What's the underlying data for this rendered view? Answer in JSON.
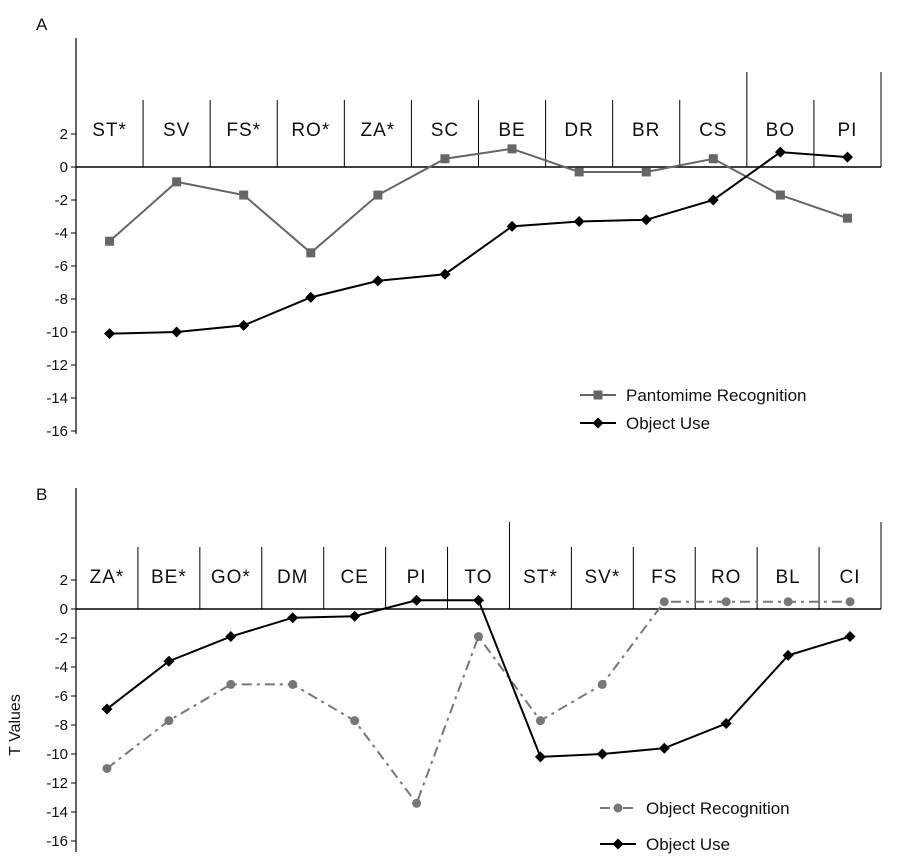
{
  "chart_data": [
    {
      "panel": "A",
      "type": "line",
      "categories": [
        "ST*",
        "SV",
        "FS*",
        "RO*",
        "ZA*",
        "SC",
        "BE",
        "DR",
        "BR",
        "CS",
        "BO",
        "PI"
      ],
      "yticks": [
        2,
        0,
        -2,
        -4,
        -6,
        -8,
        -10,
        -12,
        -14,
        -16
      ],
      "ylim": [
        -16,
        2
      ],
      "ylabel": "",
      "group_separator_after_index": 9,
      "series": [
        {
          "name": "Pantomime Recognition",
          "color": "#666666",
          "marker": "square",
          "dash": "solid",
          "values": [
            -4.5,
            -0.9,
            -1.7,
            -5.2,
            -1.7,
            0.5,
            1.1,
            -0.3,
            -0.3,
            0.5,
            -1.7,
            -3.1
          ]
        },
        {
          "name": "Object Use",
          "color": "#000000",
          "marker": "diamond",
          "dash": "solid",
          "values": [
            -10.1,
            -10.0,
            -9.6,
            -7.9,
            -6.9,
            -6.5,
            -3.6,
            -3.3,
            -3.2,
            -2.0,
            0.9,
            0.6
          ]
        }
      ],
      "legend_position": "bottom-right"
    },
    {
      "panel": "B",
      "type": "line",
      "categories": [
        "ZA*",
        "BE*",
        "GO*",
        "DM",
        "CE",
        "PI",
        "TO",
        "ST*",
        "SV*",
        "FS",
        "RO",
        "BL",
        "CI"
      ],
      "yticks": [
        2,
        0,
        -2,
        -4,
        -6,
        -8,
        -10,
        -12,
        -14,
        -16
      ],
      "ylim": [
        -16,
        2
      ],
      "ylabel": "T Values",
      "group_separator_after_index": 6,
      "series": [
        {
          "name": "Object Recognition",
          "color": "#777777",
          "marker": "circle",
          "dash": "dashdot",
          "values": [
            -11.0,
            -7.7,
            -5.2,
            -5.2,
            -7.7,
            -13.4,
            -1.9,
            -7.7,
            -5.2,
            0.5,
            0.5,
            0.5,
            0.5
          ]
        },
        {
          "name": "Object Use",
          "color": "#000000",
          "marker": "diamond",
          "dash": "solid",
          "values": [
            -6.9,
            -3.6,
            -1.9,
            -0.6,
            -0.5,
            0.6,
            0.6,
            -10.2,
            -10.0,
            -9.6,
            -7.9,
            -3.2,
            -1.9
          ]
        }
      ],
      "legend_position": "bottom-right"
    }
  ]
}
